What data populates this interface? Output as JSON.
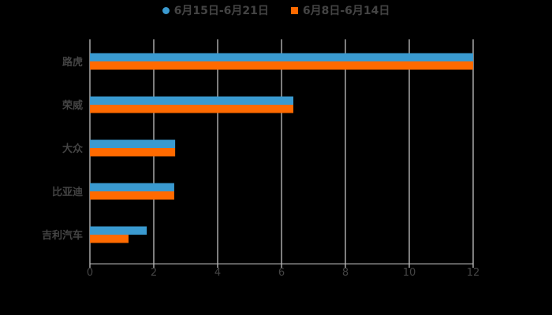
{
  "chart_data": {
    "type": "bar",
    "orientation": "horizontal",
    "title": "",
    "categories": [
      "路虎",
      "荣威",
      "大众",
      "比亚迪",
      "吉利汽车"
    ],
    "series": [
      {
        "name": "6月15日-6月21日",
        "color": "#3a9ad0",
        "values": [
          12,
          6.37,
          2.67,
          2.64,
          1.78
        ]
      },
      {
        "name": "6月8日-6月14日",
        "color": "#ff6a00",
        "values": [
          12,
          6.37,
          2.67,
          2.64,
          1.21
        ]
      }
    ],
    "xlabel": "",
    "ylabel": "",
    "xlim": [
      0,
      12
    ],
    "xticks": [
      "0",
      "2",
      "4",
      "6",
      "8",
      "10",
      "12"
    ],
    "grid": true,
    "legend_position": "top"
  },
  "legend": [
    {
      "label": "6月15日-6月21日",
      "color": "#3a9ad0",
      "marker": "circle"
    },
    {
      "label": "6月8日-6月14日",
      "color": "#ff6a00",
      "marker": "square"
    }
  ]
}
